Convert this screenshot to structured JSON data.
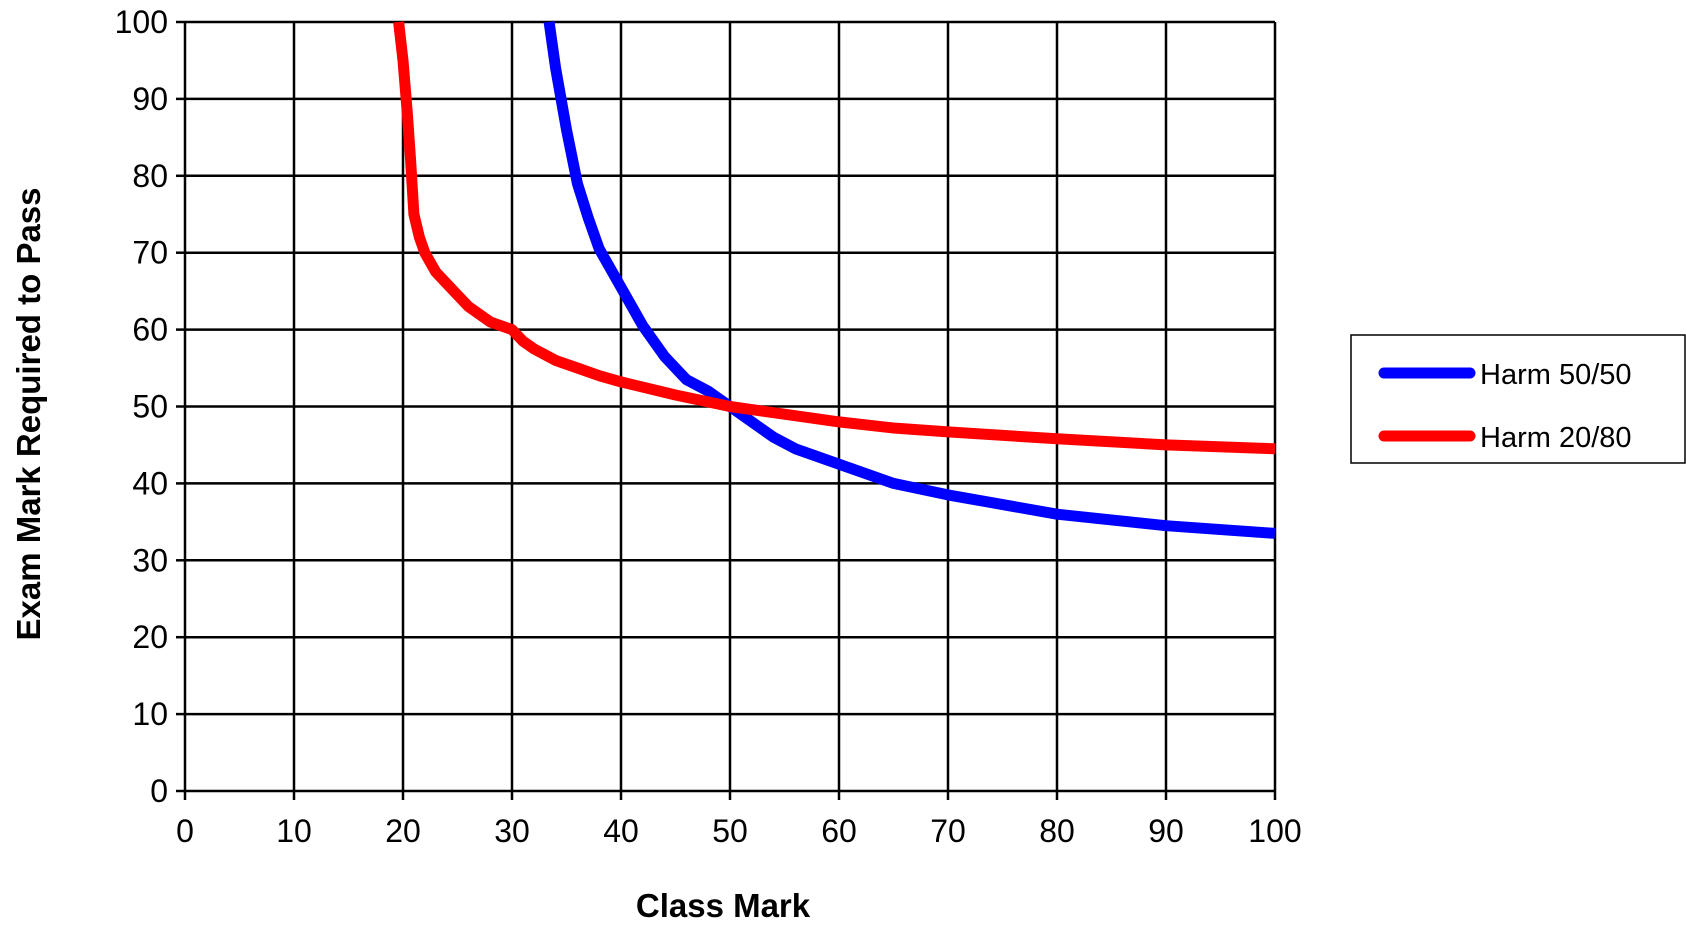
{
  "chart_data": {
    "type": "line",
    "title": "",
    "xlabel": "Class Mark",
    "ylabel": "Exam Mark Required to Pass",
    "xlim": [
      0,
      100
    ],
    "ylim": [
      0,
      100
    ],
    "x_ticks": [
      "0",
      "10",
      "20",
      "30",
      "40",
      "50",
      "60",
      "70",
      "80",
      "90",
      "100"
    ],
    "y_ticks": [
      "0",
      "10",
      "20",
      "30",
      "40",
      "50",
      "60",
      "70",
      "80",
      "90",
      "100"
    ],
    "grid": true,
    "legend_position": "right",
    "series": [
      {
        "name": "Harm 50/50",
        "color": "#0000ff",
        "x": [
          33.4,
          34,
          35,
          36,
          37,
          38,
          40,
          42,
          44,
          46,
          48,
          50,
          52,
          54,
          56,
          60,
          65,
          70,
          80,
          90,
          100
        ],
        "y": [
          100,
          94,
          86,
          79,
          74.5,
          70.5,
          65.5,
          60.5,
          56.5,
          53.5,
          52,
          50,
          48,
          46,
          44.5,
          42.5,
          40,
          38.5,
          36,
          34.5,
          33.5
        ]
      },
      {
        "name": "Harm 20/80",
        "color": "#ff0000",
        "x": [
          19.6,
          20,
          20.4,
          20.7,
          21,
          21.5,
          22,
          23,
          24,
          25,
          26,
          28,
          30,
          31,
          32,
          34,
          36,
          38,
          40,
          45,
          50,
          55,
          60,
          65,
          70,
          80,
          90,
          100
        ],
        "y": [
          100,
          95,
          88,
          82,
          75,
          72,
          70,
          67.5,
          66,
          64.5,
          63,
          61,
          60,
          58.5,
          57.5,
          56,
          55,
          54,
          53.2,
          51.5,
          50,
          49,
          48,
          47.2,
          46.7,
          45.8,
          45,
          44.5
        ]
      }
    ]
  }
}
